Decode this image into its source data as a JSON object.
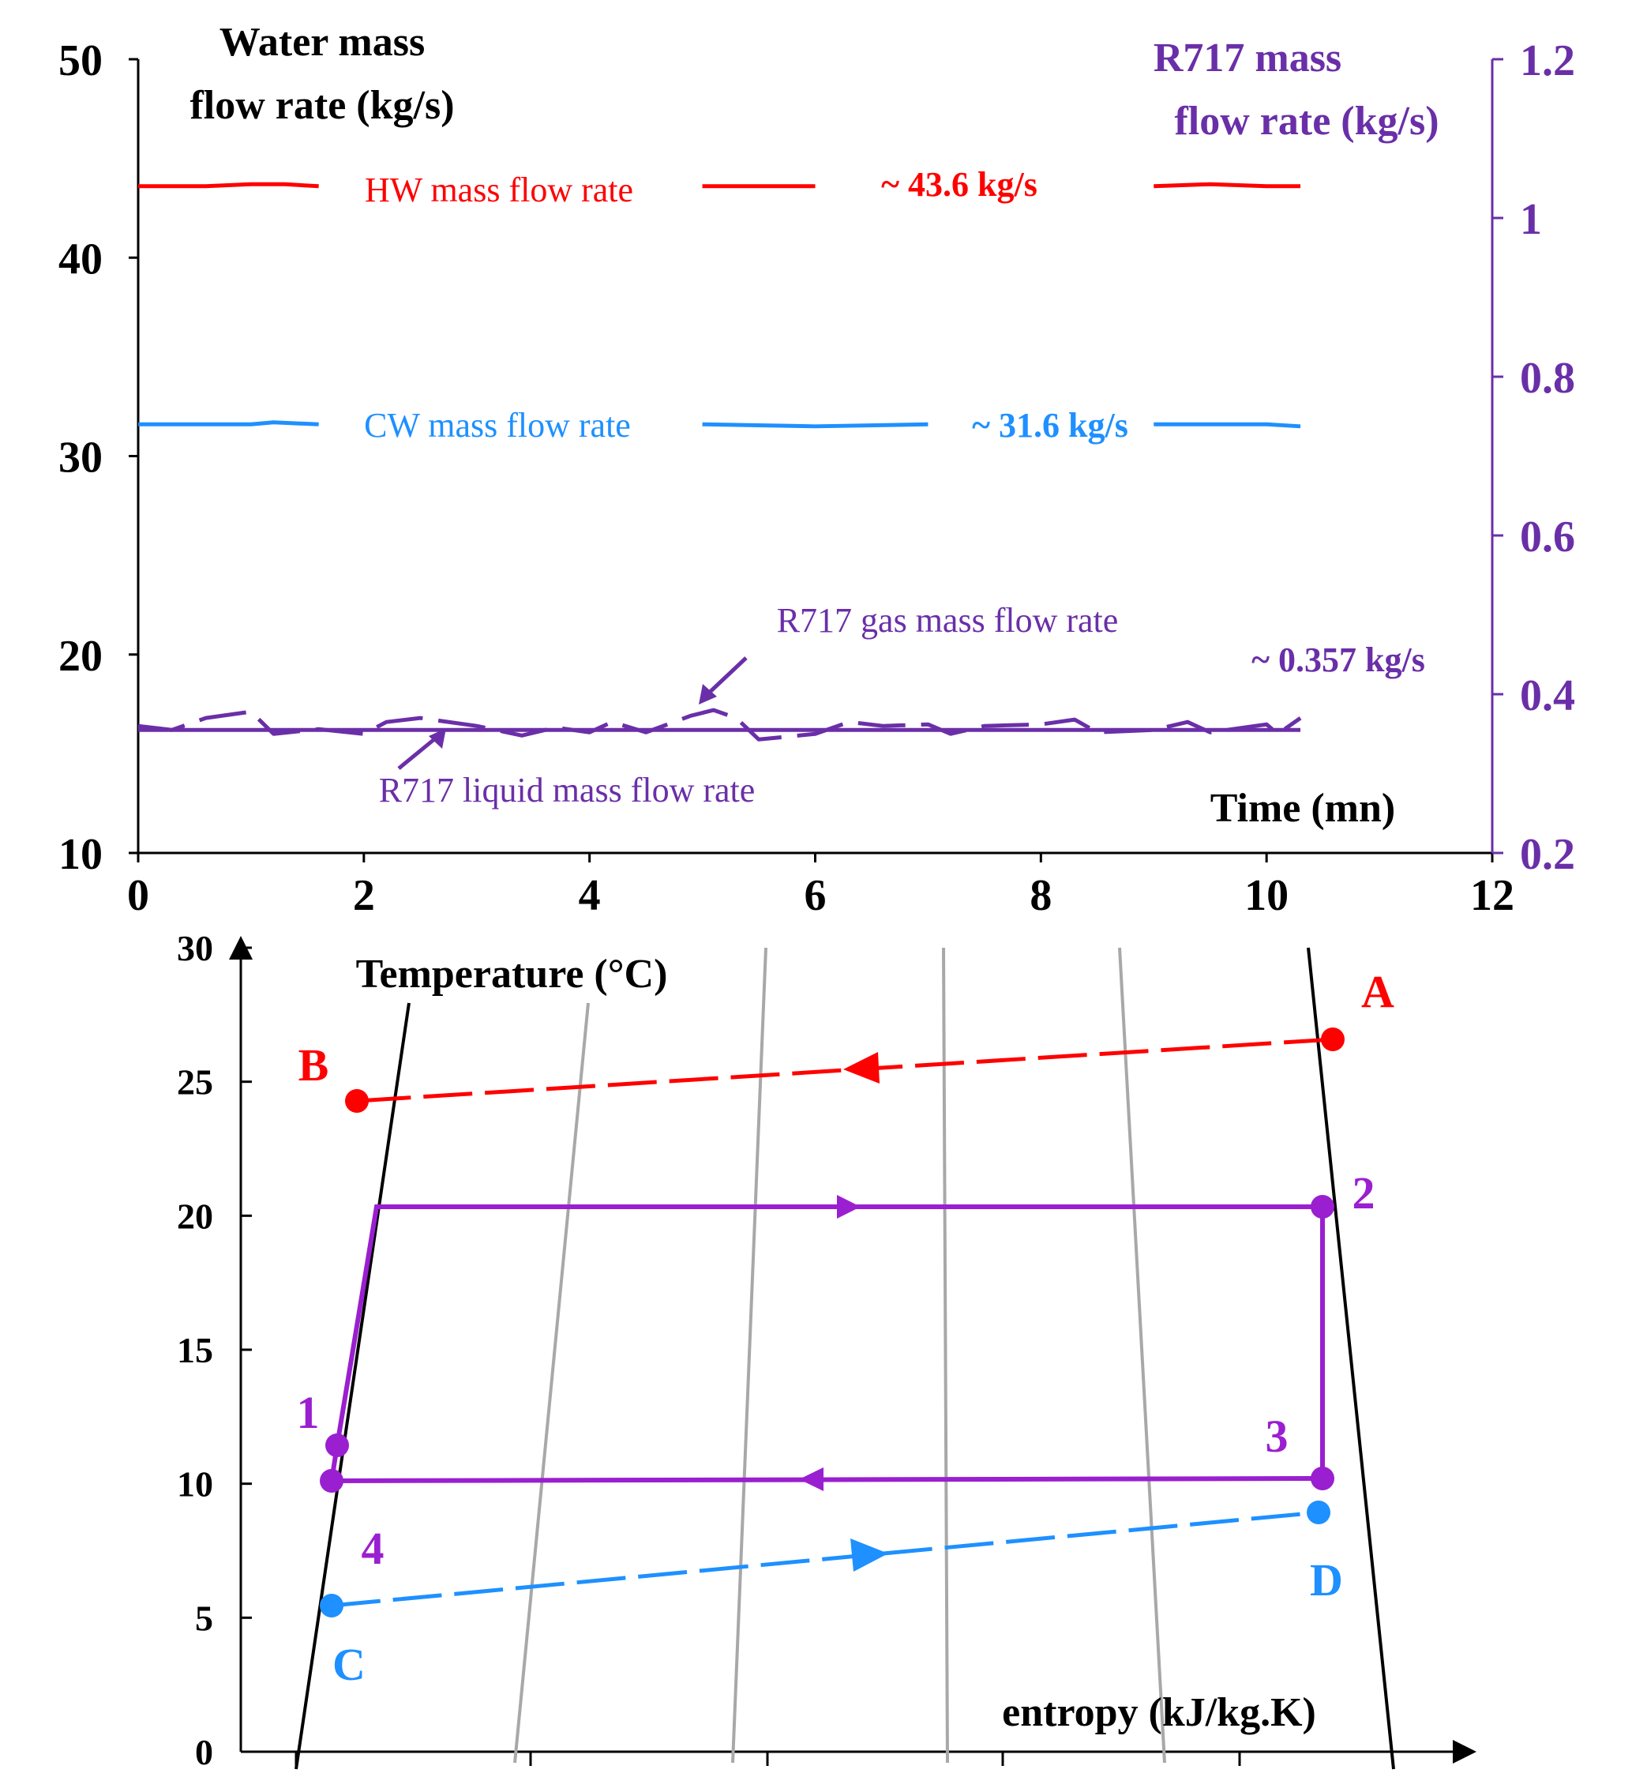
{
  "colors": {
    "axis": "#000000",
    "hw": "#ff0000",
    "cw": "#1e90ff",
    "r717": "#6a2fa8",
    "cycle": "#9a1fd0",
    "grid_curve": "#a8a8a8"
  },
  "chart_data": [
    {
      "type": "line",
      "x_label": "Time (mn)",
      "y_label_left": [
        "Water mass",
        "flow rate (kg/s)"
      ],
      "y_label_right": [
        "R717 mass",
        "flow rate (kg/s)"
      ],
      "xlim": [
        0,
        12
      ],
      "ylim_left": [
        10,
        50
      ],
      "ylim_right": [
        0.2,
        1.2
      ],
      "x_ticks": [
        "0",
        "2",
        "4",
        "6",
        "8",
        "10",
        "12"
      ],
      "y_ticks_left": [
        "10",
        "20",
        "30",
        "40",
        "50"
      ],
      "y_ticks_right": [
        "0.2",
        "0.4",
        "0.6",
        "0.8",
        "1",
        "1.2"
      ],
      "legend": "inline labels",
      "series": [
        {
          "name": "HW mass flow rate",
          "axis": "left",
          "style": "solid",
          "color_key": "hw",
          "annotation": "~ 43.6 kg/s",
          "x": [
            0,
            0.3,
            0.6,
            1.0,
            1.3,
            1.6,
            2.0,
            3.0,
            4.0,
            5.0,
            6.0,
            6.5,
            7.0,
            8.0,
            9.0,
            9.5,
            10.0,
            10.3
          ],
          "y": [
            43.6,
            43.6,
            43.6,
            43.7,
            43.7,
            43.6,
            43.6,
            43.6,
            43.6,
            43.6,
            43.6,
            43.7,
            43.6,
            43.6,
            43.6,
            43.7,
            43.6,
            43.6
          ],
          "label_gaps": [
            [
              1.6,
              4.9
            ],
            [
              6.4,
              8.3
            ]
          ]
        },
        {
          "name": "CW mass flow rate",
          "axis": "left",
          "style": "solid",
          "color_key": "cw",
          "annotation": "~ 31.6 kg/s",
          "x": [
            0,
            0.5,
            1.0,
            1.2,
            1.6,
            2.0,
            3.0,
            4.0,
            5.0,
            6.0,
            7.0,
            8.0,
            9.0,
            9.5,
            10.0,
            10.3
          ],
          "y": [
            31.6,
            31.6,
            31.6,
            31.7,
            31.6,
            31.6,
            31.6,
            31.6,
            31.6,
            31.5,
            31.6,
            31.6,
            31.6,
            31.6,
            31.6,
            31.5
          ],
          "label_gaps": [
            [
              1.6,
              4.8
            ],
            [
              7.2,
              9.0
            ]
          ]
        },
        {
          "name": "R717 gas mass flow rate",
          "axis": "right",
          "style": "dashed",
          "color_key": "r717",
          "annotation": "~ 0.357 kg/s",
          "x": [
            0,
            0.3,
            0.6,
            1.0,
            1.2,
            1.6,
            2.0,
            2.2,
            2.5,
            3.0,
            3.4,
            3.7,
            4.0,
            4.2,
            4.5,
            4.9,
            5.1,
            5.3,
            5.5,
            6.0,
            6.3,
            6.6,
            7.0,
            7.2,
            7.5,
            8.0,
            8.3,
            8.5,
            9.0,
            9.3,
            9.5,
            10.0,
            10.1,
            10.3
          ],
          "y": [
            0.36,
            0.355,
            0.37,
            0.378,
            0.35,
            0.356,
            0.35,
            0.365,
            0.37,
            0.36,
            0.348,
            0.358,
            0.352,
            0.365,
            0.352,
            0.373,
            0.38,
            0.37,
            0.343,
            0.35,
            0.365,
            0.36,
            0.362,
            0.35,
            0.36,
            0.362,
            0.368,
            0.352,
            0.355,
            0.365,
            0.352,
            0.362,
            0.35,
            0.37
          ]
        },
        {
          "name": "R717 liquid mass flow rate",
          "axis": "right",
          "style": "solid",
          "color_key": "r717",
          "x": [
            0,
            0.5,
            1.0,
            2.0,
            3.0,
            4.0,
            5.0,
            6.0,
            7.0,
            8.0,
            9.0,
            10.0,
            10.3
          ],
          "y": [
            0.355,
            0.355,
            0.355,
            0.355,
            0.355,
            0.355,
            0.355,
            0.355,
            0.355,
            0.355,
            0.355,
            0.355,
            0.355
          ]
        }
      ],
      "arrow_labels": {
        "gas": "R717 gas mass flow rate",
        "liquid": "R717 liquid mass flow rate"
      }
    },
    {
      "type": "line",
      "x_label": "entropy (kJ/kg.K)",
      "y_label": "Temperature (°C)",
      "ylim": [
        0,
        30
      ],
      "y_ticks": [
        "0",
        "5",
        "10",
        "15",
        "20",
        "25",
        "30"
      ],
      "x_ticks": [
        "",
        "",
        "",
        "",
        ""
      ],
      "legend": "none",
      "water_lines": [
        {
          "from": "A",
          "to": "B",
          "style": "dashed",
          "color_key": "hw",
          "direction": "A to B"
        },
        {
          "from": "C",
          "to": "D",
          "style": "dashed",
          "color_key": "cw",
          "direction": "C to D"
        }
      ],
      "points": [
        {
          "label": "A",
          "T": 26.6,
          "color_key": "hw"
        },
        {
          "label": "B",
          "T": 24.4,
          "color_key": "hw"
        },
        {
          "label": "C",
          "T": 5.5,
          "color_key": "cw"
        },
        {
          "label": "D",
          "T": 8.9,
          "color_key": "cw"
        },
        {
          "label": "1",
          "T": 11.5,
          "color_key": "cycle"
        },
        {
          "label": "2",
          "T": 20.4,
          "color_key": "cycle"
        },
        {
          "label": "3",
          "T": 10.3,
          "color_key": "cycle"
        },
        {
          "label": "4",
          "T": 10.2,
          "color_key": "cycle"
        }
      ],
      "cycle": {
        "path": [
          "4",
          "1",
          "2",
          "3",
          "4"
        ],
        "evaporation_T": 20.4,
        "condensation_T": 10.2,
        "color_key": "cycle"
      }
    }
  ]
}
